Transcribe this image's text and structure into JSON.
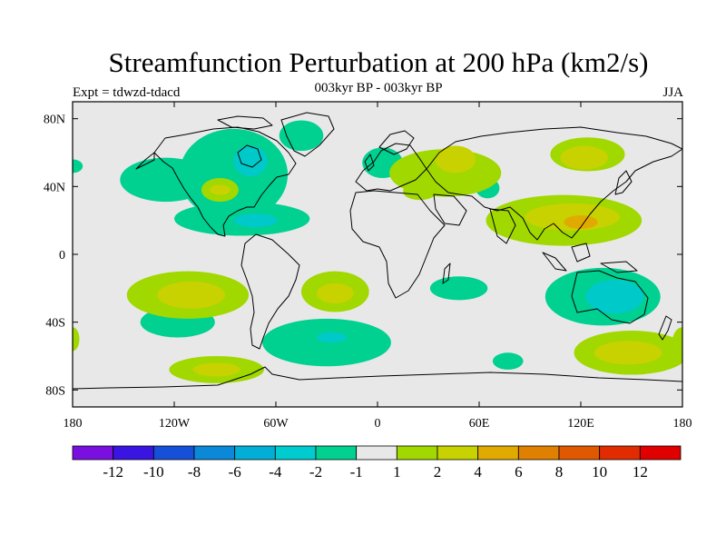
{
  "title": "Streamfunction Perturbation at 200 hPa (km2/s)",
  "subtitle": "003kyr BP - 003kyr BP",
  "left_label": "Expt = tdwzd-tdacd",
  "right_label": "JJA",
  "map": {
    "background_color": "#e8e8e8",
    "coastline_color": "#000000",
    "lon_range": [
      -180,
      180
    ],
    "lat_range": [
      -90,
      90
    ],
    "x_ticks": [
      {
        "lon": -180,
        "label": "180"
      },
      {
        "lon": -120,
        "label": "120W"
      },
      {
        "lon": -60,
        "label": "60W"
      },
      {
        "lon": 0,
        "label": "0"
      },
      {
        "lon": 60,
        "label": "60E"
      },
      {
        "lon": 120,
        "label": "120E"
      },
      {
        "lon": 180,
        "label": "180"
      }
    ],
    "y_ticks": [
      {
        "lat": 80,
        "label": "80N"
      },
      {
        "lat": 40,
        "label": "40N"
      },
      {
        "lat": 0,
        "label": "0"
      },
      {
        "lat": -40,
        "label": "40S"
      },
      {
        "lat": -80,
        "label": "80S"
      }
    ],
    "anomalies": [
      {
        "name": "npac-neg",
        "lon": -125,
        "lat": 44,
        "rlon": 27,
        "rlat": 13,
        "color": "#00d090"
      },
      {
        "name": "namerica-neg",
        "lon": -85,
        "lat": 47,
        "rlon": 32,
        "rlat": 27,
        "color": "#00d090"
      },
      {
        "name": "namerica-core",
        "lon": -75,
        "lat": 55,
        "rlon": 10,
        "rlat": 9,
        "color": "#00c9c9"
      },
      {
        "name": "alaska-neg",
        "lon": -180,
        "lat": 52,
        "rlon": 6,
        "rlat": 4,
        "color": "#00d090"
      },
      {
        "name": "tropatl-neg",
        "lon": -80,
        "lat": 21,
        "rlon": 40,
        "rlat": 10,
        "color": "#00d090"
      },
      {
        "name": "tropatl-core",
        "lon": -72,
        "lat": 20,
        "rlon": 13,
        "rlat": 4,
        "color": "#00c9c9"
      },
      {
        "name": "greenland-neg",
        "lon": -45,
        "lat": 70,
        "rlon": 13,
        "rlat": 9,
        "color": "#00d090"
      },
      {
        "name": "nsea-neg",
        "lon": 3,
        "lat": 54,
        "rlon": 12,
        "rlat": 9,
        "color": "#00d090"
      },
      {
        "name": "central-asia-neg",
        "lon": 65,
        "lat": 39,
        "rlon": 7,
        "rlat": 6,
        "color": "#00d090"
      },
      {
        "name": "indian-neg",
        "lon": 48,
        "lat": -20,
        "rlon": 17,
        "rlat": 7,
        "color": "#00d090"
      },
      {
        "name": "australia-neg",
        "lon": 133,
        "lat": -25,
        "rlon": 34,
        "rlat": 17,
        "color": "#00d090"
      },
      {
        "name": "australia-core",
        "lon": 140,
        "lat": -25,
        "rlon": 17,
        "rlat": 10,
        "color": "#00c9c9"
      },
      {
        "name": "sam-neg",
        "lon": -30,
        "lat": -52,
        "rlon": 38,
        "rlat": 14,
        "color": "#00d090"
      },
      {
        "name": "sam-core",
        "lon": -27,
        "lat": -49,
        "rlon": 9,
        "rlat": 3,
        "color": "#00c9c9"
      },
      {
        "name": "sepac-neg",
        "lon": -118,
        "lat": -40,
        "rlon": 22,
        "rlat": 9,
        "color": "#00d090"
      },
      {
        "name": "kerguelen-neg",
        "lon": 77,
        "lat": -63,
        "rlon": 9,
        "rlat": 5,
        "color": "#00d090"
      },
      {
        "name": "eurasia-pos",
        "lon": 40,
        "lat": 48,
        "rlon": 33,
        "rlat": 14,
        "color": "#a0d800"
      },
      {
        "name": "eurasia-core",
        "lon": 46,
        "lat": 56,
        "rlon": 12,
        "rlat": 8,
        "color": "#c8d200"
      },
      {
        "name": "siberia-pos",
        "lon": 124,
        "lat": 59,
        "rlon": 22,
        "rlat": 10,
        "color": "#a0d800"
      },
      {
        "name": "siberia-core",
        "lon": 122,
        "lat": 57,
        "rlon": 14,
        "rlat": 7,
        "color": "#c8d200"
      },
      {
        "name": "asia-pos",
        "lon": 110,
        "lat": 20,
        "rlon": 46,
        "rlat": 15,
        "color": "#a0d800"
      },
      {
        "name": "asia-core",
        "lon": 115,
        "lat": 22,
        "rlon": 28,
        "rlat": 8,
        "color": "#c8d200"
      },
      {
        "name": "asia-core2",
        "lon": 120,
        "lat": 19,
        "rlon": 10,
        "rlat": 4,
        "color": "#e0aa00"
      },
      {
        "name": "usa-pos",
        "lon": -93,
        "lat": 38,
        "rlon": 11,
        "rlat": 7,
        "color": "#a0d800"
      },
      {
        "name": "usa-core",
        "lon": -93,
        "lat": 38,
        "rlon": 6,
        "rlat": 3,
        "color": "#c8d200"
      },
      {
        "name": "pac-pos",
        "lon": -112,
        "lat": -24,
        "rlon": 36,
        "rlat": 14,
        "color": "#a0d800"
      },
      {
        "name": "pac-core",
        "lon": -110,
        "lat": -24,
        "rlon": 20,
        "rlat": 8,
        "color": "#c8d200"
      },
      {
        "name": "satl-pos",
        "lon": -25,
        "lat": -22,
        "rlon": 20,
        "rlat": 12,
        "color": "#a0d800"
      },
      {
        "name": "satl-core",
        "lon": -25,
        "lat": -23,
        "rlon": 11,
        "rlat": 6,
        "color": "#c8d200"
      },
      {
        "name": "sio-pos",
        "lon": 150,
        "lat": -58,
        "rlon": 34,
        "rlat": 13,
        "color": "#a0d800"
      },
      {
        "name": "sio-core",
        "lon": 148,
        "lat": -58,
        "rlon": 20,
        "rlat": 7,
        "color": "#c8d200"
      },
      {
        "name": "spac-pos",
        "lon": -95,
        "lat": -68,
        "rlon": 28,
        "rlat": 8,
        "color": "#a0d800"
      },
      {
        "name": "spac-core",
        "lon": -95,
        "lat": -68,
        "rlon": 14,
        "rlat": 4,
        "color": "#c8d200"
      },
      {
        "name": "wpac-edge-pos",
        "lon": -180,
        "lat": -50,
        "rlon": 4,
        "rlat": 7,
        "color": "#a0d800"
      },
      {
        "name": "med-pos",
        "lon": 25,
        "lat": 37,
        "rlon": 10,
        "rlat": 5,
        "color": "#a0d800"
      },
      {
        "name": "spac-edge-pos",
        "lon": 180,
        "lat": -52,
        "rlon": 6,
        "rlat": 9,
        "color": "#a0d800"
      }
    ]
  },
  "colorbar": {
    "colors": [
      "#7a10e0",
      "#3a14e0",
      "#1650d8",
      "#0c88d8",
      "#00aed6",
      "#00ccd0",
      "#00d090",
      "#e8e8e8",
      "#a0d800",
      "#c8d200",
      "#e0aa00",
      "#e08000",
      "#e05800",
      "#e02c00",
      "#e00000"
    ],
    "labels": [
      "-12",
      "-10",
      "-8",
      "-6",
      "-4",
      "-2",
      "-1",
      "1",
      "2",
      "4",
      "6",
      "8",
      "10",
      "12"
    ]
  }
}
